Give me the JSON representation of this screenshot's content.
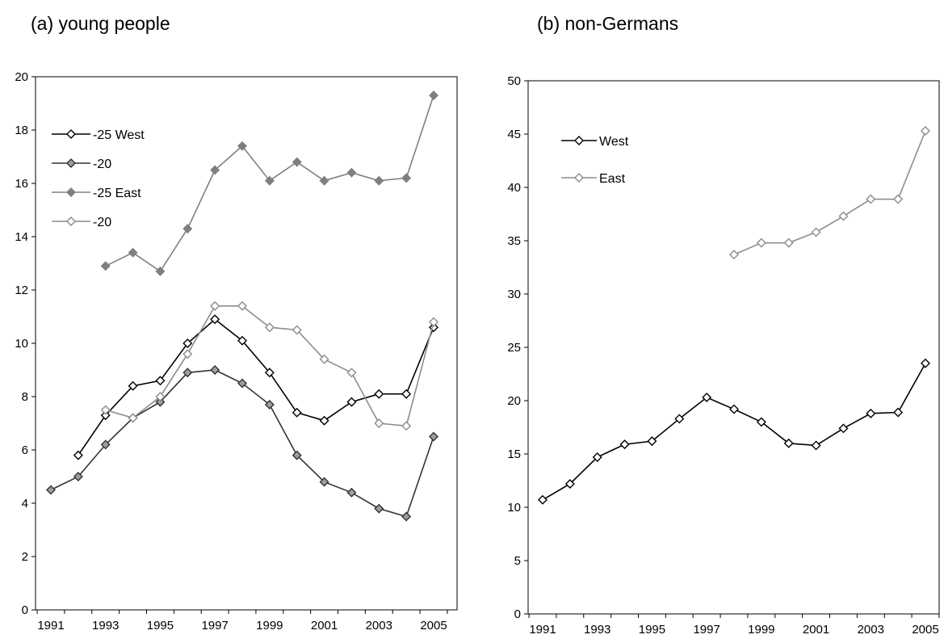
{
  "chart_data": [
    {
      "type": "line",
      "title": "(a) young people",
      "x": [
        1991,
        1992,
        1993,
        1994,
        1995,
        1996,
        1997,
        1998,
        1999,
        2000,
        2001,
        2002,
        2003,
        2004,
        2005
      ],
      "xticks": [
        "1991",
        "1993",
        "1995",
        "1997",
        "1999",
        "2001",
        "2003",
        "2005"
      ],
      "yticks": [
        "0",
        "2",
        "4",
        "6",
        "8",
        "10",
        "12",
        "14",
        "16",
        "18",
        "20"
      ],
      "ylim": [
        0,
        20
      ],
      "xlim": [
        1991,
        2005
      ],
      "grid": false,
      "legend_position": "top-left",
      "series": [
        {
          "name": "-25 West",
          "line_color": "#000000",
          "marker_fill": "#ffffff",
          "marker_stroke": "#000000",
          "values": [
            null,
            5.8,
            7.3,
            8.4,
            8.6,
            10.0,
            10.9,
            10.1,
            8.9,
            7.4,
            7.1,
            7.8,
            8.1,
            8.1,
            10.6
          ]
        },
        {
          "name": "-20",
          "line_color": "#333333",
          "marker_fill": "#9e9e9e",
          "marker_stroke": "#333333",
          "values": [
            4.5,
            5.0,
            6.2,
            7.2,
            7.8,
            8.9,
            9.0,
            8.5,
            7.7,
            5.8,
            4.8,
            4.4,
            3.8,
            3.5,
            6.5
          ]
        },
        {
          "name": "-25 East",
          "line_color": "#808080",
          "marker_fill": "#7f7f7f",
          "marker_stroke": "#7f7f7f",
          "values": [
            null,
            null,
            12.9,
            13.4,
            12.7,
            14.3,
            16.5,
            17.4,
            16.1,
            16.8,
            16.1,
            16.4,
            16.1,
            16.2,
            19.3
          ]
        },
        {
          "name": "-20",
          "line_color": "#8c8c8c",
          "marker_fill": "#ffffff",
          "marker_stroke": "#8c8c8c",
          "values": [
            null,
            null,
            7.5,
            7.2,
            8.0,
            9.6,
            11.4,
            11.4,
            10.6,
            10.5,
            9.4,
            8.9,
            7.0,
            6.9,
            10.8
          ]
        }
      ]
    },
    {
      "type": "line",
      "title": "(b) non-Germans",
      "x": [
        1991,
        1992,
        1993,
        1994,
        1995,
        1996,
        1997,
        1998,
        1999,
        2000,
        2001,
        2002,
        2003,
        2004,
        2005
      ],
      "xticks": [
        "1991",
        "1993",
        "1995",
        "1997",
        "1999",
        "2001",
        "2003",
        "2005"
      ],
      "yticks": [
        "0",
        "5",
        "10",
        "15",
        "20",
        "25",
        "30",
        "35",
        "40",
        "45",
        "50"
      ],
      "ylim": [
        0,
        50
      ],
      "xlim": [
        1991,
        2005
      ],
      "grid": false,
      "legend_position": "top-left",
      "series": [
        {
          "name": "West",
          "line_color": "#000000",
          "marker_fill": "#ffffff",
          "marker_stroke": "#000000",
          "values": [
            10.7,
            12.2,
            14.7,
            15.9,
            16.2,
            18.3,
            20.3,
            19.2,
            18.0,
            16.0,
            15.8,
            17.4,
            18.8,
            18.9,
            23.5
          ]
        },
        {
          "name": "East",
          "line_color": "#8c8c8c",
          "marker_fill": "#ffffff",
          "marker_stroke": "#8c8c8c",
          "values": [
            null,
            null,
            null,
            null,
            null,
            null,
            null,
            33.7,
            34.8,
            34.8,
            35.8,
            37.3,
            38.9,
            38.9,
            45.3
          ]
        }
      ]
    }
  ]
}
